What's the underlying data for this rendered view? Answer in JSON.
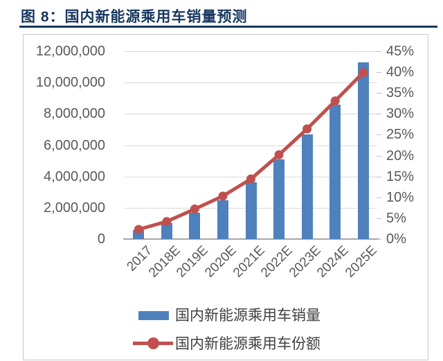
{
  "page": {
    "title": "图 8：国内新能源乘用车销量预测"
  },
  "colors": {
    "title_navy": "#17375E",
    "bar_blue": "#4F81BD",
    "line_red": "#C0504D",
    "axis_text": "#595959",
    "gridline": "#D9D9D9",
    "card_border": "#C8C8C8"
  },
  "chart_data": {
    "type": "combo-bar-line",
    "title": "图 8：国内新能源乘用车销量预测",
    "categories": [
      "2017",
      "2018E",
      "2019E",
      "2020E",
      "2021E",
      "2022E",
      "2023E",
      "2024E",
      "2025E"
    ],
    "series": [
      {
        "name": "国内新能源乘用车销量",
        "type": "bar",
        "yaxis": "left",
        "color": "#4F81BD",
        "values": [
          580000,
          1000000,
          1700000,
          2500000,
          3650000,
          5100000,
          6700000,
          8600000,
          11300000
        ]
      },
      {
        "name": "国内新能源乘用车份额",
        "type": "line",
        "yaxis": "right",
        "unit": "%",
        "color": "#C0504D",
        "marker": "circle",
        "values": [
          2.3,
          4.2,
          7.2,
          10.3,
          14.4,
          20.2,
          26.4,
          33.1,
          39.9
        ]
      }
    ],
    "left_axis": {
      "min": 0,
      "max": 12000000,
      "tick_labels": [
        "12,000,000",
        "10,000,000",
        "8,000,000",
        "6,000,000",
        "4,000,000",
        "2,000,000",
        "0"
      ]
    },
    "right_axis": {
      "min": 0,
      "max": 45,
      "tick_labels": [
        "45%",
        "40%",
        "35%",
        "30%",
        "25%",
        "20%",
        "15%",
        "10%",
        "5%",
        "0%"
      ]
    },
    "grid": true,
    "legend_position": "bottom"
  }
}
